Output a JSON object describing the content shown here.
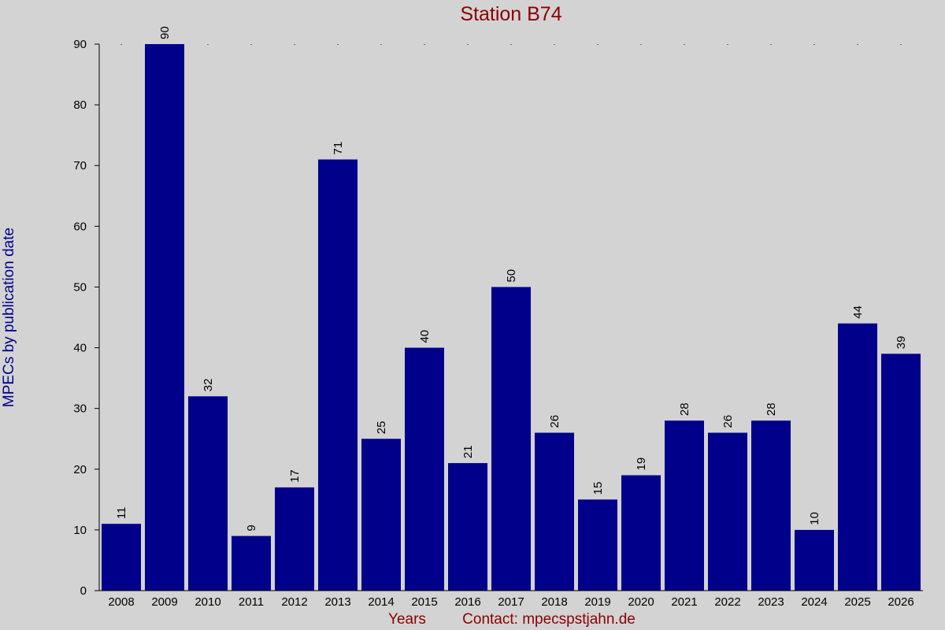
{
  "chart_data": {
    "type": "bar",
    "title": "Station B74",
    "ylabel": "MPECs by publication date",
    "xlabel": "Years",
    "contact": "Contact: mpecspstjahn.de",
    "categories": [
      "2008",
      "2009",
      "2010",
      "2011",
      "2012",
      "2013",
      "2014",
      "2015",
      "2016",
      "2017",
      "2018",
      "2019",
      "2020",
      "2021",
      "2022",
      "2023",
      "2024",
      "2025",
      "2026"
    ],
    "values": [
      11,
      90,
      32,
      9,
      17,
      71,
      25,
      40,
      21,
      50,
      26,
      15,
      19,
      28,
      26,
      28,
      10,
      44,
      39
    ],
    "ylim": [
      0,
      90
    ],
    "yticks": [
      0,
      10,
      20,
      30,
      40,
      50,
      60,
      70,
      80,
      90
    ],
    "grid": false,
    "legend": "none",
    "bar_color": "#00008b",
    "background_color": "#d3d3d3"
  }
}
